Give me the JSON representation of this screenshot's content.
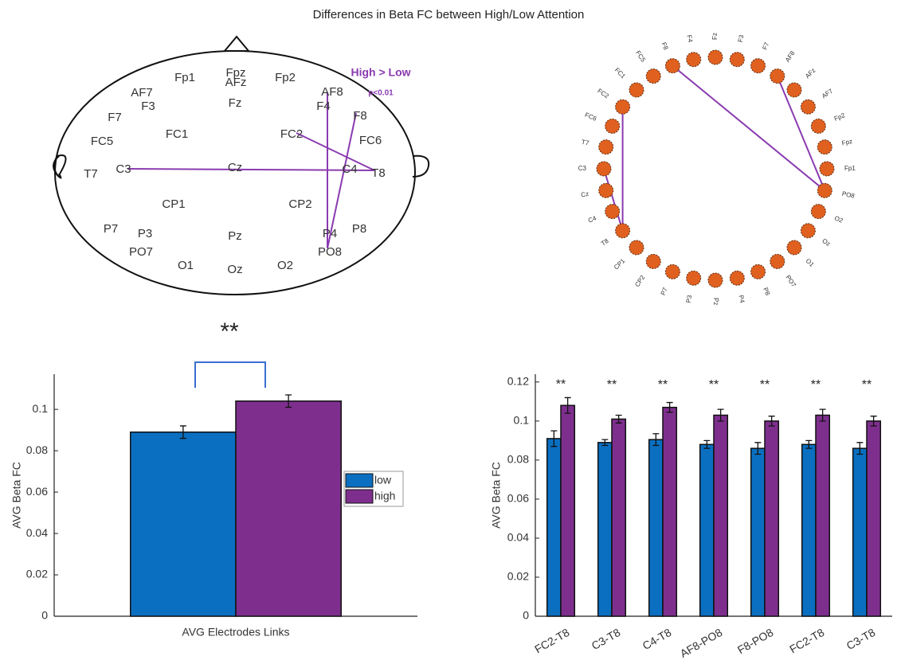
{
  "title": "Differences in Beta FC between High/Low Attention",
  "head_map": {
    "legend_title": "High > Low",
    "legend_note": "p<0.01",
    "electrodes": [
      "Fp1",
      "Fpz",
      "AFz",
      "Fp2",
      "AF7",
      "AF8",
      "F3",
      "Fz",
      "F4",
      "F7",
      "F8",
      "FC1",
      "FC2",
      "FC5",
      "FC6",
      "T7",
      "C3",
      "Cz",
      "C4",
      "T8",
      "CP1",
      "CP2",
      "P7",
      "P3",
      "Pz",
      "P4",
      "P8",
      "PO7",
      "PO8",
      "O1",
      "Oz",
      "O2"
    ],
    "links": [
      [
        "C3",
        "T8"
      ],
      [
        "FC2",
        "T8"
      ],
      [
        "AF8",
        "PO8"
      ],
      [
        "F8",
        "PO8"
      ]
    ]
  },
  "circle_plot": {
    "nodes": [
      "F4",
      "Fz",
      "F3",
      "F7",
      "AF8",
      "AFz",
      "AF7",
      "Fp2",
      "Fpz",
      "Fp1",
      "PO8",
      "O2",
      "Oz",
      "O1",
      "PO7",
      "P8",
      "P4",
      "Pz",
      "P3",
      "P7",
      "CP2",
      "CP1",
      "T8",
      "C4",
      "Cz",
      "C3",
      "T7",
      "FC6",
      "FC2",
      "FC1",
      "FC5",
      "F8"
    ],
    "links": [
      [
        "F8",
        "PO8"
      ],
      [
        "AF8",
        "PO8"
      ],
      [
        "FC2",
        "T8"
      ],
      [
        "C3",
        "T8"
      ]
    ]
  },
  "chart_data": [
    {
      "type": "bar",
      "ylabel": "AVG Beta FC",
      "xlabel": "AVG Electrodes Links",
      "categories": [
        null
      ],
      "series": [
        {
          "name": "low",
          "color": "#0b6fc1",
          "values": [
            0.089
          ],
          "errors": [
            0.003
          ]
        },
        {
          "name": "high",
          "color": "#7e2f8e",
          "values": [
            0.104
          ],
          "errors": [
            0.003
          ]
        }
      ],
      "ylim": [
        0,
        0.117
      ],
      "yticks": [
        0,
        0.02,
        0.04,
        0.06,
        0.08,
        0.1
      ],
      "legend": "right",
      "annotation": "**"
    },
    {
      "type": "bar",
      "ylabel": "AVG Beta FC",
      "categories": [
        "FC2-T8",
        "C3-T8",
        "C4-T8",
        "AF8-PO8",
        "F8-PO8",
        "FC2-T8",
        "C3-T8"
      ],
      "series": [
        {
          "name": "low",
          "color": "#0b6fc1",
          "values": [
            0.091,
            0.089,
            0.0905,
            0.088,
            0.086,
            0.088,
            0.086
          ],
          "errors": [
            0.004,
            0.0015,
            0.003,
            0.002,
            0.003,
            0.002,
            0.003
          ]
        },
        {
          "name": "high",
          "color": "#7e2f8e",
          "values": [
            0.108,
            0.101,
            0.107,
            0.103,
            0.1,
            0.103,
            0.1
          ],
          "errors": [
            0.004,
            0.002,
            0.0025,
            0.003,
            0.0025,
            0.003,
            0.0025
          ]
        }
      ],
      "ylim": [
        0,
        0.124
      ],
      "yticks": [
        0,
        0.02,
        0.04,
        0.06,
        0.08,
        0.1,
        0.12
      ],
      "annotations": [
        "**",
        "**",
        "**",
        "**",
        "**",
        "**",
        "**"
      ]
    }
  ]
}
